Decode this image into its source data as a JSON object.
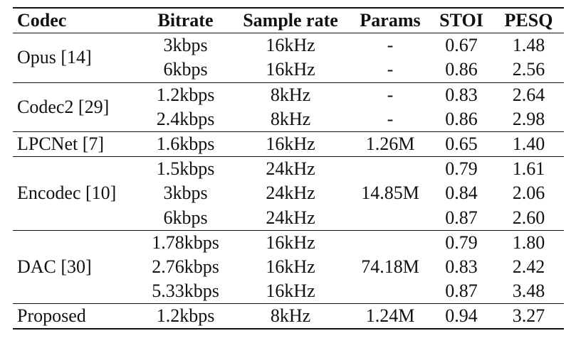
{
  "columns": [
    "Codec",
    "Bitrate",
    "Sample rate",
    "Params",
    "STOI",
    "PESQ"
  ],
  "groups": [
    {
      "codec": "Opus [14]",
      "params": "",
      "rows": [
        {
          "bitrate": "3kbps",
          "sample_rate": "16kHz",
          "params": "-",
          "stoi": "0.67",
          "pesq": "1.48"
        },
        {
          "bitrate": "6kbps",
          "sample_rate": "16kHz",
          "params": "-",
          "stoi": "0.86",
          "pesq": "2.56"
        }
      ]
    },
    {
      "codec": "Codec2 [29]",
      "params": "",
      "rows": [
        {
          "bitrate": "1.2kbps",
          "sample_rate": "8kHz",
          "params": "-",
          "stoi": "0.83",
          "pesq": "2.64"
        },
        {
          "bitrate": "2.4kbps",
          "sample_rate": "8kHz",
          "params": "-",
          "stoi": "0.86",
          "pesq": "2.98"
        }
      ]
    },
    {
      "codec": "LPCNet [7]",
      "params": "1.26M",
      "rows": [
        {
          "bitrate": "1.6kbps",
          "sample_rate": "16kHz",
          "stoi": "0.65",
          "pesq": "1.40"
        }
      ]
    },
    {
      "codec": "Encodec [10]",
      "params": "14.85M",
      "rows": [
        {
          "bitrate": "1.5kbps",
          "sample_rate": "24kHz",
          "stoi": "0.79",
          "pesq": "1.61"
        },
        {
          "bitrate": "3kbps",
          "sample_rate": "24kHz",
          "stoi": "0.84",
          "pesq": "2.06"
        },
        {
          "bitrate": "6kbps",
          "sample_rate": "24kHz",
          "stoi": "0.87",
          "pesq": "2.60"
        }
      ]
    },
    {
      "codec": "DAC [30]",
      "params": "74.18M",
      "rows": [
        {
          "bitrate": "1.78kbps",
          "sample_rate": "16kHz",
          "stoi": "0.79",
          "pesq": "1.80"
        },
        {
          "bitrate": "2.76kbps",
          "sample_rate": "16kHz",
          "stoi": "0.83",
          "pesq": "2.42"
        },
        {
          "bitrate": "5.33kbps",
          "sample_rate": "16kHz",
          "stoi": "0.87",
          "pesq": "3.48"
        }
      ]
    },
    {
      "codec": "Proposed",
      "params": "1.24M",
      "rows": [
        {
          "bitrate": "1.2kbps",
          "sample_rate": "8kHz",
          "stoi": "0.94",
          "pesq": "3.27"
        }
      ]
    }
  ]
}
